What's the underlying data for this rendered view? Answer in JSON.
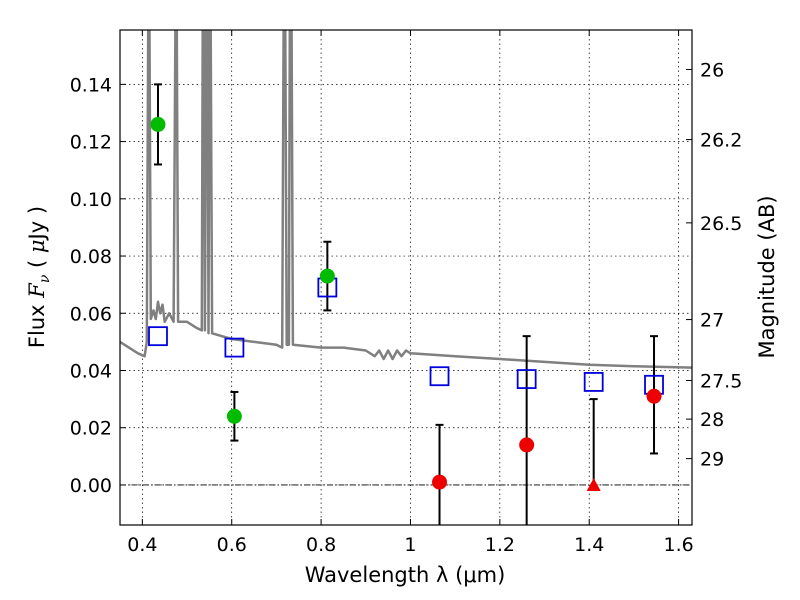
{
  "chart_data": {
    "type": "scatter",
    "xlabel": "Wavelength  λ (μm)",
    "ylabel": "Flux  F_ν  ( μJy )",
    "ylabel_parts": [
      "Flux  ",
      "F",
      "ν",
      "  ( ",
      "μ",
      "Jy )"
    ],
    "y2label": "Magnitude (AB)",
    "xlim": [
      0.35,
      1.63
    ],
    "ylim": [
      -0.014,
      0.159
    ],
    "grid": true,
    "legend": "none",
    "xticks": [
      0.4,
      0.6,
      0.8,
      1.0,
      1.2,
      1.4,
      1.6
    ],
    "xtick_labels": [
      "0.4",
      "0.6",
      "0.8",
      "1",
      "1.2",
      "1.4",
      "1.6"
    ],
    "yticks": [
      0.0,
      0.02,
      0.04,
      0.06,
      0.08,
      0.1,
      0.12,
      0.14
    ],
    "ytick_labels": [
      "0.00",
      "0.02",
      "0.04",
      "0.06",
      "0.08",
      "0.10",
      "0.12",
      "0.14"
    ],
    "y2ticks": [
      {
        "label": "26",
        "flux": 0.1452
      },
      {
        "label": "26.2",
        "flux": 0.1207
      },
      {
        "label": "26.5",
        "flux": 0.0916
      },
      {
        "label": "27",
        "flux": 0.0578
      },
      {
        "label": "27.5",
        "flux": 0.0365
      },
      {
        "label": "28",
        "flux": 0.023
      },
      {
        "label": "29",
        "flux": 0.0092
      }
    ],
    "colors": {
      "model": "#808080",
      "green": "#00bb00",
      "red": "#ee0000",
      "blue": "#0000dd",
      "errorbar": "#000000"
    },
    "model_spectrum": [
      [
        0.35,
        0.05
      ],
      [
        0.37,
        0.048
      ],
      [
        0.39,
        0.046
      ],
      [
        0.405,
        0.045
      ],
      [
        0.41,
        0.05
      ],
      [
        0.413,
        0.159
      ],
      [
        0.416,
        0.159
      ],
      [
        0.419,
        0.058
      ],
      [
        0.425,
        0.061
      ],
      [
        0.43,
        0.058
      ],
      [
        0.435,
        0.064
      ],
      [
        0.44,
        0.06
      ],
      [
        0.445,
        0.063
      ],
      [
        0.45,
        0.057
      ],
      [
        0.46,
        0.06
      ],
      [
        0.47,
        0.057
      ],
      [
        0.474,
        0.159
      ],
      [
        0.477,
        0.159
      ],
      [
        0.48,
        0.057
      ],
      [
        0.5,
        0.057
      ],
      [
        0.52,
        0.055
      ],
      [
        0.533,
        0.054
      ],
      [
        0.535,
        0.159
      ],
      [
        0.538,
        0.159
      ],
      [
        0.54,
        0.054
      ],
      [
        0.543,
        0.159
      ],
      [
        0.546,
        0.159
      ],
      [
        0.548,
        0.053
      ],
      [
        0.55,
        0.159
      ],
      [
        0.553,
        0.159
      ],
      [
        0.556,
        0.053
      ],
      [
        0.6,
        0.051
      ],
      [
        0.65,
        0.05
      ],
      [
        0.7,
        0.049
      ],
      [
        0.713,
        0.048
      ],
      [
        0.716,
        0.159
      ],
      [
        0.72,
        0.159
      ],
      [
        0.723,
        0.049
      ],
      [
        0.728,
        0.049
      ],
      [
        0.73,
        0.159
      ],
      [
        0.734,
        0.159
      ],
      [
        0.737,
        0.049
      ],
      [
        0.8,
        0.048
      ],
      [
        0.85,
        0.048
      ],
      [
        0.9,
        0.047
      ],
      [
        0.92,
        0.045
      ],
      [
        0.93,
        0.047
      ],
      [
        0.94,
        0.044
      ],
      [
        0.95,
        0.047
      ],
      [
        0.96,
        0.044
      ],
      [
        0.97,
        0.047
      ],
      [
        0.98,
        0.045
      ],
      [
        0.99,
        0.047
      ],
      [
        1.0,
        0.046
      ],
      [
        1.1,
        0.045
      ],
      [
        1.2,
        0.044
      ],
      [
        1.3,
        0.043
      ],
      [
        1.4,
        0.042
      ],
      [
        1.5,
        0.0415
      ],
      [
        1.63,
        0.041
      ]
    ],
    "green_points": [
      {
        "x": 0.435,
        "y": 0.126,
        "err_low": 0.014,
        "err_high": 0.014
      },
      {
        "x": 0.606,
        "y": 0.024,
        "err_low": 0.0085,
        "err_high": 0.0085
      },
      {
        "x": 0.814,
        "y": 0.073,
        "err_low": 0.012,
        "err_high": 0.012
      }
    ],
    "red_points": [
      {
        "x": 1.065,
        "y": 0.001,
        "err_low": 0.02,
        "err_high": 0.02
      },
      {
        "x": 1.26,
        "y": 0.014,
        "err_low": 0.038,
        "err_high": 0.038
      },
      {
        "x": 1.545,
        "y": 0.031,
        "err_low": 0.02,
        "err_high": 0.021
      }
    ],
    "red_limits": [
      {
        "x": 1.41,
        "y": 0.0,
        "err_high": 0.03
      }
    ],
    "model_photometry": [
      {
        "x": 0.435,
        "y": 0.052
      },
      {
        "x": 0.606,
        "y": 0.048
      },
      {
        "x": 0.814,
        "y": 0.069
      },
      {
        "x": 1.065,
        "y": 0.038
      },
      {
        "x": 1.26,
        "y": 0.037
      },
      {
        "x": 1.41,
        "y": 0.036
      },
      {
        "x": 1.545,
        "y": 0.035
      }
    ]
  }
}
